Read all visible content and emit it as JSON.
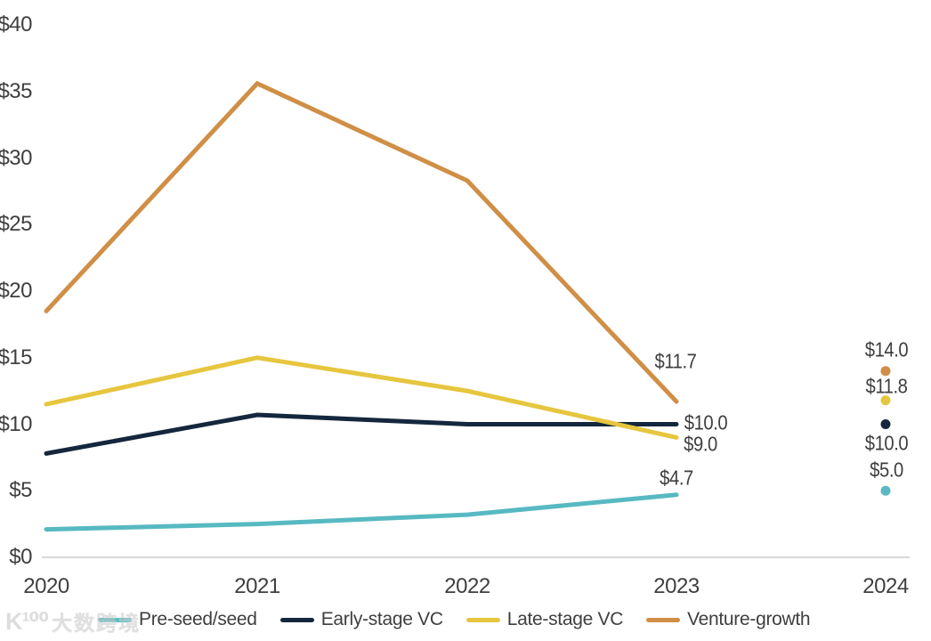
{
  "watermark": {
    "logo_glyph": "K¹⁰⁰",
    "brand": "大数跨境"
  },
  "chart_data": {
    "type": "line",
    "title": "",
    "xlabel": "",
    "ylabel": "",
    "x_labels": [
      "2020",
      "2021",
      "2022",
      "2023",
      "2024"
    ],
    "y_tick_labels": [
      "$0",
      "$5",
      "$10",
      "$15",
      "$20",
      "$25",
      "$30",
      "$35",
      "$40"
    ],
    "ylim": [
      0,
      40
    ],
    "grid": false,
    "legend_position": "bottom",
    "layout_note": "lines drawn 2020-2023; 2024 values shown as detached dot markers with labels",
    "series": [
      {
        "name": "Pre-seed/seed",
        "color": "#57B9C2",
        "values": [
          2.1,
          2.5,
          3.2,
          4.7,
          5.0
        ],
        "label_2023": "$4.7",
        "label_2024": "$5.0"
      },
      {
        "name": "Early-stage VC",
        "color": "#14273D",
        "values": [
          7.8,
          10.7,
          10.0,
          10.0,
          10.0
        ],
        "label_2023": "$10.0",
        "label_2024": "$10.0"
      },
      {
        "name": "Late-stage VC",
        "color": "#E6C63E",
        "values": [
          11.5,
          15.0,
          12.5,
          9.0,
          11.8
        ],
        "label_2023": "$9.0",
        "label_2024": "$11.8"
      },
      {
        "name": "Venture-growth",
        "color": "#D08F46",
        "values": [
          18.5,
          35.6,
          28.3,
          11.7,
          14.0
        ],
        "label_2023": "$11.7",
        "label_2024": "$14.0"
      }
    ]
  }
}
